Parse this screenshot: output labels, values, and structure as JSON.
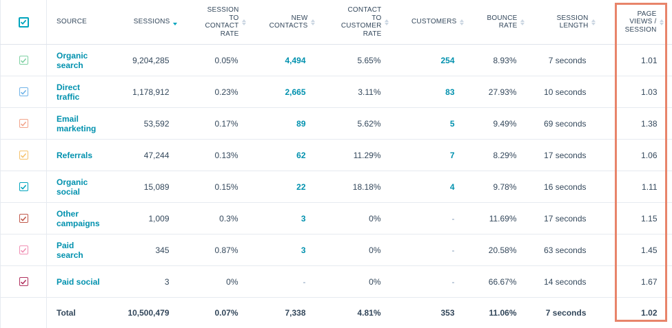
{
  "columns": {
    "source": "SOURCE",
    "sessions": "SESSIONS",
    "session_to_contact_rate": "SESSION\nTO\nCONTACT\nRATE",
    "new_contacts": "NEW\nCONTACTS",
    "contact_to_customer_rate": "CONTACT\nTO\nCUSTOMER\nRATE",
    "customers": "CUSTOMERS",
    "bounce_rate": "BOUNCE\nRATE",
    "session_length": "SESSION\nLENGTH",
    "page_views_per_session": "PAGE\nVIEWS /\nSESSION"
  },
  "colors": {
    "accent": "#00a4bd",
    "link": "#0091ae",
    "highlight": "#e8846a"
  },
  "header_checkbox_color": "#00a4bd",
  "rows": [
    {
      "source": "Organic\nsearch",
      "checkbox_color": "#7fd1a3",
      "sessions": "9,204,285",
      "session_to_contact_rate": "0.05%",
      "new_contacts": "4,494",
      "contact_to_customer_rate": "5.65%",
      "customers": "254",
      "bounce_rate": "8.93%",
      "session_length": "7 seconds",
      "page_views_per_session": "1.01"
    },
    {
      "source": "Direct\ntraffic",
      "checkbox_color": "#6fb3e8",
      "sessions": "1,178,912",
      "session_to_contact_rate": "0.23%",
      "new_contacts": "2,665",
      "contact_to_customer_rate": "3.11%",
      "customers": "83",
      "bounce_rate": "27.93%",
      "session_length": "10 seconds",
      "page_views_per_session": "1.03"
    },
    {
      "source": "Email\nmarketing",
      "checkbox_color": "#f2a48a",
      "sessions": "53,592",
      "session_to_contact_rate": "0.17%",
      "new_contacts": "89",
      "contact_to_customer_rate": "5.62%",
      "customers": "5",
      "bounce_rate": "9.49%",
      "session_length": "69 seconds",
      "page_views_per_session": "1.38"
    },
    {
      "source": "Referrals",
      "checkbox_color": "#f5c26b",
      "sessions": "47,244",
      "session_to_contact_rate": "0.13%",
      "new_contacts": "62",
      "contact_to_customer_rate": "11.29%",
      "customers": "7",
      "bounce_rate": "8.29%",
      "session_length": "17 seconds",
      "page_views_per_session": "1.06"
    },
    {
      "source": "Organic\nsocial",
      "checkbox_color": "#00a4bd",
      "sessions": "15,089",
      "session_to_contact_rate": "0.15%",
      "new_contacts": "22",
      "contact_to_customer_rate": "18.18%",
      "customers": "4",
      "bounce_rate": "9.78%",
      "session_length": "16 seconds",
      "page_views_per_session": "1.11"
    },
    {
      "source": "Other\ncampaigns",
      "checkbox_color": "#c0584a",
      "sessions": "1,009",
      "session_to_contact_rate": "0.3%",
      "new_contacts": "3",
      "contact_to_customer_rate": "0%",
      "customers": "-",
      "bounce_rate": "11.69%",
      "session_length": "17 seconds",
      "page_views_per_session": "1.15"
    },
    {
      "source": "Paid\nsearch",
      "checkbox_color": "#f08fb4",
      "sessions": "345",
      "session_to_contact_rate": "0.87%",
      "new_contacts": "3",
      "contact_to_customer_rate": "0%",
      "customers": "-",
      "bounce_rate": "20.58%",
      "session_length": "63 seconds",
      "page_views_per_session": "1.45"
    },
    {
      "source": "Paid social",
      "checkbox_color": "#b0305e",
      "sessions": "3",
      "session_to_contact_rate": "0%",
      "new_contacts": "-",
      "contact_to_customer_rate": "0%",
      "customers": "-",
      "bounce_rate": "66.67%",
      "session_length": "14 seconds",
      "page_views_per_session": "1.67"
    }
  ],
  "total": {
    "label": "Total",
    "sessions": "10,500,479",
    "session_to_contact_rate": "0.07%",
    "new_contacts": "7,338",
    "contact_to_customer_rate": "4.81%",
    "customers": "353",
    "bounce_rate": "11.06%",
    "session_length": "7 seconds",
    "page_views_per_session": "1.02"
  }
}
